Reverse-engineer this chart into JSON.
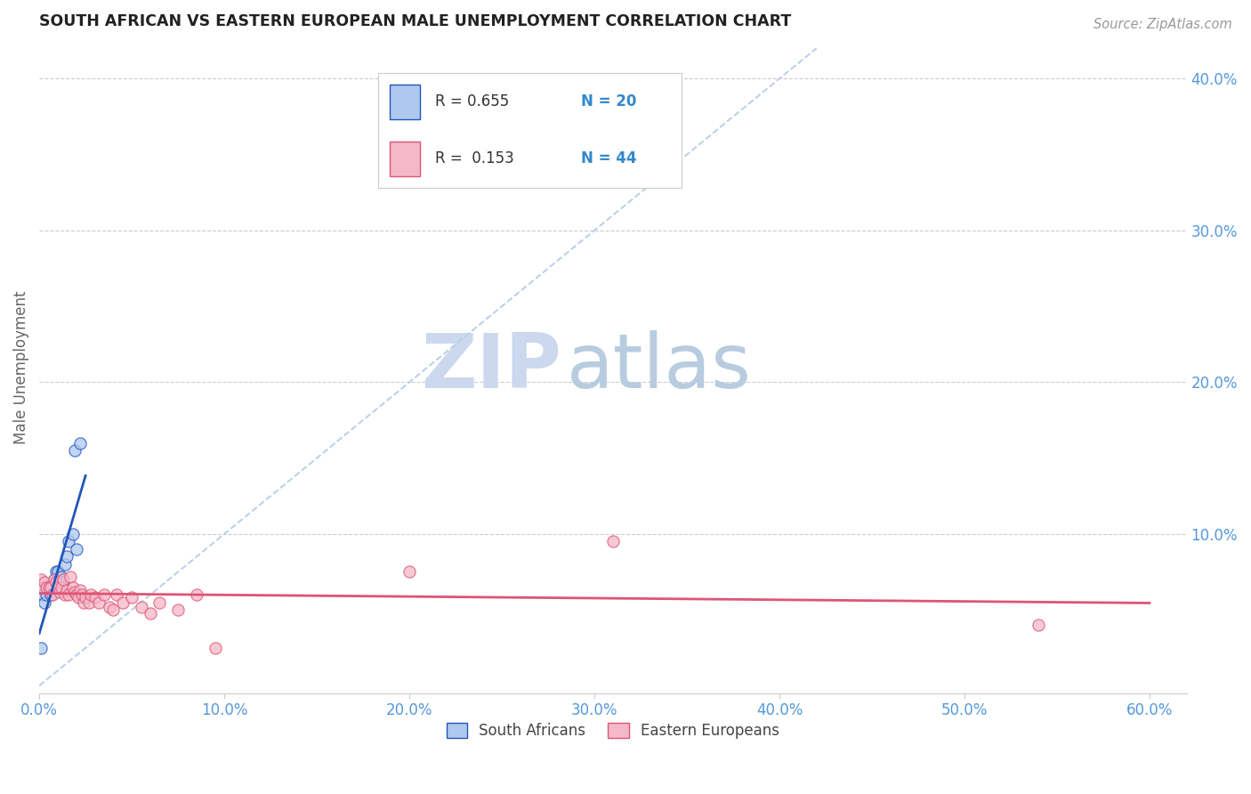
{
  "title": "SOUTH AFRICAN VS EASTERN EUROPEAN MALE UNEMPLOYMENT CORRELATION CHART",
  "source": "Source: ZipAtlas.com",
  "ylabel": "Male Unemployment",
  "xlim": [
    0.0,
    0.62
  ],
  "ylim": [
    -0.005,
    0.425
  ],
  "right_yticks": [
    0.1,
    0.2,
    0.3,
    0.4
  ],
  "right_ytick_labels": [
    "10.0%",
    "20.0%",
    "30.0%",
    "40.0%"
  ],
  "x_tick_vals": [
    0.0,
    0.1,
    0.2,
    0.3,
    0.4,
    0.5,
    0.6
  ],
  "south_african_x": [
    0.001,
    0.002,
    0.003,
    0.004,
    0.005,
    0.006,
    0.007,
    0.008,
    0.009,
    0.01,
    0.011,
    0.012,
    0.013,
    0.014,
    0.015,
    0.016,
    0.018,
    0.019,
    0.02,
    0.022
  ],
  "south_african_y": [
    0.025,
    0.06,
    0.055,
    0.06,
    0.065,
    0.06,
    0.065,
    0.07,
    0.075,
    0.075,
    0.068,
    0.072,
    0.068,
    0.08,
    0.085,
    0.095,
    0.1,
    0.155,
    0.09,
    0.16
  ],
  "eastern_european_x": [
    0.001,
    0.002,
    0.003,
    0.004,
    0.005,
    0.006,
    0.007,
    0.008,
    0.009,
    0.01,
    0.011,
    0.012,
    0.013,
    0.014,
    0.015,
    0.016,
    0.017,
    0.018,
    0.019,
    0.02,
    0.021,
    0.022,
    0.023,
    0.024,
    0.025,
    0.027,
    0.028,
    0.03,
    0.032,
    0.035,
    0.038,
    0.04,
    0.042,
    0.045,
    0.05,
    0.055,
    0.06,
    0.065,
    0.075,
    0.085,
    0.095,
    0.2,
    0.31,
    0.54
  ],
  "eastern_european_y": [
    0.07,
    0.065,
    0.068,
    0.065,
    0.065,
    0.065,
    0.06,
    0.07,
    0.068,
    0.065,
    0.062,
    0.065,
    0.07,
    0.06,
    0.063,
    0.06,
    0.072,
    0.065,
    0.062,
    0.06,
    0.058,
    0.063,
    0.06,
    0.055,
    0.058,
    0.055,
    0.06,
    0.058,
    0.055,
    0.06,
    0.052,
    0.05,
    0.06,
    0.055,
    0.058,
    0.052,
    0.048,
    0.055,
    0.05,
    0.06,
    0.025,
    0.075,
    0.095,
    0.04
  ],
  "sa_color": "#aec8f0",
  "ee_color": "#f5b8c8",
  "sa_line_color": "#2255bb",
  "ee_line_color": "#dd5575",
  "ref_line_color": "#b8cfe8",
  "watermark_zip_color": "#ccd8ee",
  "watermark_atlas_color": "#b8cce0",
  "marker_size": 90,
  "marker_alpha": 0.75,
  "legend_r1_black": "R = 0.655",
  "legend_r1_blue": "N = 20",
  "legend_r2_black": "R =  0.153",
  "legend_r2_blue": "N = 44",
  "blue_text_color": "#3388cc",
  "axis_text_color": "#5599dd",
  "title_color": "#222222",
  "ylabel_color": "#666666"
}
